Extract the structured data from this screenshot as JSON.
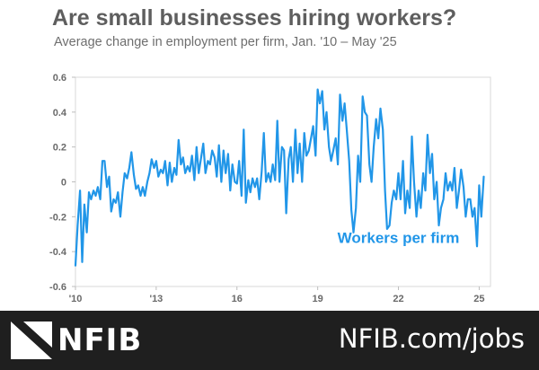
{
  "header": {
    "title": "Are small businesses hiring workers?",
    "subtitle": "Average change in employment  per firm,  Jan. '10 – May '25"
  },
  "footer": {
    "logo_text": "NFIB",
    "url": "NFIB.com/jobs",
    "background_color": "#1f1f1f"
  },
  "chart_data": {
    "type": "line",
    "title": "Are small businesses hiring workers?",
    "subtitle": "Average change in employment  per firm,  Jan. '10 – May '25",
    "xlabel": "",
    "ylabel": "",
    "x_start": "2010-01",
    "x_end": "2025-05",
    "xlim": [
      2010.0,
      2025.42
    ],
    "ylim": [
      -0.6,
      0.6
    ],
    "x_ticks": [
      {
        "label": "'10",
        "value": 2010
      },
      {
        "label": "'13",
        "value": 2013
      },
      {
        "label": "16",
        "value": 2016
      },
      {
        "label": "19",
        "value": 2019
      },
      {
        "label": "22",
        "value": 2022
      },
      {
        "label": "25",
        "value": 2025
      }
    ],
    "y_ticks": [
      {
        "label": "0.6",
        "value": 0.6
      },
      {
        "label": "0.4",
        "value": 0.4
      },
      {
        "label": "0.2",
        "value": 0.2
      },
      {
        "label": "0",
        "value": 0
      },
      {
        "label": "-0.2",
        "value": -0.2
      },
      {
        "label": "-0.4",
        "value": -0.4
      },
      {
        "label": "-0.6",
        "value": -0.6
      }
    ],
    "grid": false,
    "line_color": "#2196e8",
    "annotations": [
      {
        "text": "Workers per firm",
        "x": 2022.0,
        "y": -0.35,
        "color": "#2196e8"
      }
    ],
    "series": [
      {
        "name": "Workers per firm",
        "points": [
          [
            2010.0,
            -0.48
          ],
          [
            2010.08,
            -0.25
          ],
          [
            2010.17,
            -0.05
          ],
          [
            2010.25,
            -0.46
          ],
          [
            2010.33,
            -0.13
          ],
          [
            2010.42,
            -0.29
          ],
          [
            2010.5,
            -0.06
          ],
          [
            2010.58,
            -0.1
          ],
          [
            2010.67,
            -0.05
          ],
          [
            2010.75,
            -0.08
          ],
          [
            2010.83,
            -0.03
          ],
          [
            2010.92,
            -0.1
          ],
          [
            2011.0,
            0.12
          ],
          [
            2011.08,
            0.12
          ],
          [
            2011.17,
            -0.03
          ],
          [
            2011.25,
            0.03
          ],
          [
            2011.33,
            -0.17
          ],
          [
            2011.42,
            -0.1
          ],
          [
            2011.5,
            -0.12
          ],
          [
            2011.58,
            -0.06
          ],
          [
            2011.67,
            -0.2
          ],
          [
            2011.75,
            -0.06
          ],
          [
            2011.83,
            0.05
          ],
          [
            2011.92,
            0.02
          ],
          [
            2012.0,
            0.08
          ],
          [
            2012.08,
            0.17
          ],
          [
            2012.17,
            0.04
          ],
          [
            2012.25,
            -0.04
          ],
          [
            2012.33,
            -0.02
          ],
          [
            2012.42,
            -0.08
          ],
          [
            2012.5,
            -0.03
          ],
          [
            2012.58,
            -0.08
          ],
          [
            2012.67,
            0.0
          ],
          [
            2012.75,
            0.05
          ],
          [
            2012.83,
            0.13
          ],
          [
            2012.92,
            0.08
          ],
          [
            2013.0,
            0.12
          ],
          [
            2013.08,
            0.03
          ],
          [
            2013.17,
            0.07
          ],
          [
            2013.25,
            0.05
          ],
          [
            2013.33,
            0.12
          ],
          [
            2013.42,
            -0.02
          ],
          [
            2013.5,
            0.11
          ],
          [
            2013.58,
            0.0
          ],
          [
            2013.67,
            0.08
          ],
          [
            2013.75,
            0.04
          ],
          [
            2013.83,
            0.24
          ],
          [
            2013.92,
            0.1
          ],
          [
            2014.0,
            0.14
          ],
          [
            2014.08,
            0.05
          ],
          [
            2014.17,
            0.09
          ],
          [
            2014.25,
            0.06
          ],
          [
            2014.33,
            0.15
          ],
          [
            2014.42,
            0.01
          ],
          [
            2014.5,
            0.2
          ],
          [
            2014.58,
            0.05
          ],
          [
            2014.67,
            0.14
          ],
          [
            2014.75,
            0.22
          ],
          [
            2014.83,
            0.05
          ],
          [
            2014.92,
            0.12
          ],
          [
            2015.0,
            0.1
          ],
          [
            2015.08,
            0.18
          ],
          [
            2015.17,
            0.14
          ],
          [
            2015.25,
            0.03
          ],
          [
            2015.33,
            0.21
          ],
          [
            2015.42,
            0.0
          ],
          [
            2015.5,
            0.18
          ],
          [
            2015.58,
            0.05
          ],
          [
            2015.67,
            0.16
          ],
          [
            2015.75,
            -0.05
          ],
          [
            2015.83,
            0.1
          ],
          [
            2015.92,
            0.0
          ],
          [
            2016.0,
            -0.01
          ],
          [
            2016.08,
            0.12
          ],
          [
            2016.17,
            -0.08
          ],
          [
            2016.25,
            0.3
          ],
          [
            2016.33,
            -0.12
          ],
          [
            2016.42,
            0.01
          ],
          [
            2016.5,
            -0.06
          ],
          [
            2016.58,
            0.02
          ],
          [
            2016.67,
            -0.03
          ],
          [
            2016.75,
            0.02
          ],
          [
            2016.83,
            -0.1
          ],
          [
            2016.92,
            0.06
          ],
          [
            2017.0,
            0.28
          ],
          [
            2017.08,
            0.0
          ],
          [
            2017.17,
            0.05
          ],
          [
            2017.25,
            0.0
          ],
          [
            2017.33,
            0.1
          ],
          [
            2017.42,
            0.01
          ],
          [
            2017.5,
            0.35
          ],
          [
            2017.58,
            0.0
          ],
          [
            2017.67,
            0.2
          ],
          [
            2017.75,
            0.18
          ],
          [
            2017.83,
            -0.18
          ],
          [
            2017.92,
            0.13
          ],
          [
            2018.0,
            0.2
          ],
          [
            2018.08,
            0.0
          ],
          [
            2018.17,
            0.3
          ],
          [
            2018.25,
            0.05
          ],
          [
            2018.33,
            0.22
          ],
          [
            2018.42,
            0.0
          ],
          [
            2018.5,
            0.28
          ],
          [
            2018.58,
            0.15
          ],
          [
            2018.67,
            0.18
          ],
          [
            2018.75,
            0.25
          ],
          [
            2018.83,
            0.32
          ],
          [
            2018.92,
            0.15
          ],
          [
            2019.0,
            0.53
          ],
          [
            2019.08,
            0.45
          ],
          [
            2019.17,
            0.52
          ],
          [
            2019.25,
            0.3
          ],
          [
            2019.33,
            0.4
          ],
          [
            2019.42,
            0.2
          ],
          [
            2019.5,
            0.12
          ],
          [
            2019.58,
            0.18
          ],
          [
            2019.67,
            0.25
          ],
          [
            2019.75,
            0.1
          ],
          [
            2019.83,
            0.5
          ],
          [
            2019.92,
            0.35
          ],
          [
            2020.0,
            0.45
          ],
          [
            2020.08,
            0.3
          ],
          [
            2020.17,
            0.12
          ],
          [
            2020.25,
            -0.16
          ],
          [
            2020.33,
            -0.29
          ],
          [
            2020.42,
            -0.15
          ],
          [
            2020.5,
            0.15
          ],
          [
            2020.58,
            0.0
          ],
          [
            2020.67,
            0.49
          ],
          [
            2020.75,
            0.4
          ],
          [
            2020.83,
            0.38
          ],
          [
            2020.92,
            0.1
          ],
          [
            2021.0,
            0.0
          ],
          [
            2021.08,
            0.2
          ],
          [
            2021.17,
            0.36
          ],
          [
            2021.25,
            0.25
          ],
          [
            2021.33,
            0.42
          ],
          [
            2021.42,
            0.3
          ],
          [
            2021.5,
            -0.05
          ],
          [
            2021.58,
            -0.27
          ],
          [
            2021.67,
            -0.25
          ],
          [
            2021.75,
            -0.12
          ],
          [
            2021.83,
            -0.05
          ],
          [
            2021.92,
            -0.1
          ],
          [
            2022.0,
            0.05
          ],
          [
            2022.08,
            -0.1
          ],
          [
            2022.17,
            0.12
          ],
          [
            2022.25,
            -0.18
          ],
          [
            2022.33,
            -0.05
          ],
          [
            2022.42,
            -0.15
          ],
          [
            2022.5,
            0.26
          ],
          [
            2022.58,
            0.0
          ],
          [
            2022.67,
            -0.2
          ],
          [
            2022.75,
            -0.05
          ],
          [
            2022.83,
            -0.15
          ],
          [
            2022.92,
            0.05
          ],
          [
            2023.0,
            -0.05
          ],
          [
            2023.08,
            0.27
          ],
          [
            2023.17,
            0.05
          ],
          [
            2023.25,
            0.16
          ],
          [
            2023.33,
            -0.1
          ],
          [
            2023.42,
            0.0
          ],
          [
            2023.5,
            -0.25
          ],
          [
            2023.58,
            -0.15
          ],
          [
            2023.67,
            -0.1
          ],
          [
            2023.75,
            0.05
          ],
          [
            2023.83,
            -0.05
          ],
          [
            2023.92,
            0.0
          ],
          [
            2024.0,
            -0.05
          ],
          [
            2024.08,
            0.08
          ],
          [
            2024.17,
            -0.15
          ],
          [
            2024.25,
            -0.05
          ],
          [
            2024.33,
            0.07
          ],
          [
            2024.42,
            -0.03
          ],
          [
            2024.5,
            -0.2
          ],
          [
            2024.58,
            -0.1
          ],
          [
            2024.67,
            -0.1
          ],
          [
            2024.75,
            -0.2
          ],
          [
            2024.83,
            -0.15
          ],
          [
            2024.92,
            -0.37
          ],
          [
            2025.0,
            -0.02
          ],
          [
            2025.08,
            -0.2
          ],
          [
            2025.17,
            0.03
          ]
        ]
      }
    ]
  }
}
